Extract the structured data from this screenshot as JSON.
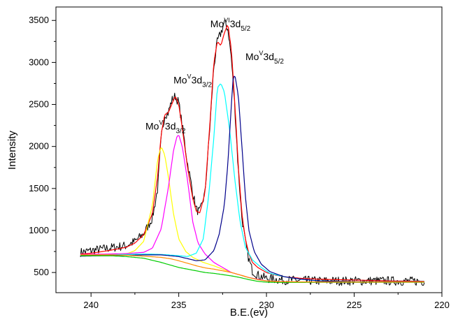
{
  "chart_data": {
    "type": "line",
    "title": "",
    "xlabel": "B.E.(ev)",
    "ylabel": "Intensity",
    "xlim": [
      242,
      220
    ],
    "ylim": [
      260,
      3660
    ],
    "xticks": [
      240,
      235,
      230,
      225,
      220
    ],
    "yticks": [
      500,
      1000,
      1500,
      2000,
      2500,
      3000,
      3500
    ],
    "x_reversed": true,
    "grid": false,
    "legend": "none",
    "series": [
      {
        "color": "#000000",
        "style": "noisy",
        "x": [
          240.6,
          240,
          239,
          238,
          237.5,
          237,
          236.5,
          236.2,
          236,
          235.8,
          235.6,
          235.4,
          235.2,
          235,
          234.8,
          234.5,
          234.2,
          234,
          233.8,
          233.5,
          233.2,
          233,
          232.8,
          232.6,
          232.4,
          232.2,
          232,
          231.8,
          231.6,
          231.4,
          231.2,
          231,
          230.8,
          230.5,
          230,
          229.5,
          229,
          228,
          227,
          225,
          223,
          221
        ],
        "y": [
          740,
          760,
          790,
          820,
          870,
          960,
          1150,
          1500,
          2100,
          2380,
          2400,
          2550,
          2600,
          2520,
          2250,
          1800,
          1450,
          1250,
          1220,
          1450,
          2300,
          2950,
          3250,
          3350,
          3480,
          3400,
          3050,
          2450,
          1700,
          1150,
          850,
          650,
          520,
          470,
          430,
          420,
          410,
          405,
          400,
          400,
          400,
          395
        ]
      },
      {
        "color": "#ff0000",
        "style": "smooth",
        "x": [
          240.6,
          240,
          239,
          238,
          237.5,
          237,
          236.5,
          236.2,
          236,
          235.8,
          235.6,
          235.4,
          235.2,
          235,
          234.8,
          234.5,
          234.2,
          234,
          233.8,
          233.5,
          233.2,
          233,
          232.8,
          232.6,
          232.4,
          232.2,
          232,
          231.8,
          231.6,
          231.4,
          231.2,
          231,
          230.8,
          230.5,
          230,
          229.5,
          229,
          228,
          227,
          225,
          223,
          221
        ],
        "y": [
          720,
          730,
          760,
          800,
          850,
          950,
          1200,
          1650,
          2150,
          2380,
          2400,
          2500,
          2600,
          2500,
          2220,
          1750,
          1380,
          1230,
          1210,
          1450,
          2350,
          3000,
          3250,
          3200,
          3350,
          3460,
          3150,
          2500,
          1750,
          1200,
          900,
          720,
          620,
          560,
          500,
          470,
          450,
          430,
          420,
          410,
          400,
          395
        ]
      },
      {
        "color": "#ffff00",
        "style": "smooth",
        "x": [
          240.6,
          239,
          238,
          237.5,
          237,
          236.5,
          236.2,
          236,
          235.8,
          235.6,
          235.3,
          235,
          234.6,
          234.2,
          233.6,
          233,
          232,
          231,
          230,
          229,
          227,
          225,
          221
        ],
        "y": [
          710,
          710,
          720,
          760,
          870,
          1300,
          1850,
          2000,
          1900,
          1650,
          1200,
          900,
          750,
          680,
          620,
          580,
          500,
          440,
          400,
          390,
          385,
          385,
          385
        ]
      },
      {
        "color": "#ff00ff",
        "style": "smooth",
        "x": [
          240.6,
          239,
          238,
          237,
          236.5,
          236,
          235.6,
          235.3,
          235.1,
          235,
          234.8,
          234.5,
          234.2,
          233.9,
          233.5,
          233,
          232.5,
          232,
          231,
          230,
          229,
          227,
          225,
          221
        ],
        "y": [
          715,
          720,
          725,
          740,
          790,
          1020,
          1500,
          1950,
          2120,
          2140,
          2000,
          1600,
          1100,
          850,
          720,
          620,
          560,
          500,
          440,
          400,
          390,
          385,
          385,
          385
        ]
      },
      {
        "color": "#00ffff",
        "style": "smooth",
        "x": [
          240.6,
          239,
          238,
          237,
          236,
          235,
          234.5,
          234,
          233.6,
          233.3,
          233,
          232.8,
          232.6,
          232.4,
          232.1,
          231.8,
          231.5,
          231.2,
          230.8,
          230.3,
          229.8,
          229,
          228,
          227,
          225,
          221
        ],
        "y": [
          700,
          710,
          715,
          720,
          715,
          700,
          690,
          730,
          900,
          1400,
          2100,
          2700,
          2750,
          2650,
          2200,
          1600,
          1100,
          800,
          650,
          560,
          490,
          450,
          420,
          400,
          390,
          390
        ]
      },
      {
        "color": "#00008b",
        "style": "smooth",
        "x": [
          240.6,
          239,
          238,
          237,
          236,
          235,
          234,
          233.5,
          233,
          232.7,
          232.4,
          232.2,
          232,
          231.9,
          231.8,
          231.6,
          231.4,
          231.2,
          231,
          230.7,
          230.3,
          229.8,
          229,
          228,
          227,
          225,
          221
        ],
        "y": [
          695,
          700,
          705,
          710,
          710,
          690,
          640,
          650,
          760,
          950,
          1300,
          1800,
          2500,
          2820,
          2850,
          2600,
          2000,
          1400,
          1000,
          750,
          600,
          510,
          450,
          420,
          400,
          390,
          390
        ]
      },
      {
        "color": "#00cc00",
        "style": "smooth",
        "x": [
          240.6,
          239,
          238,
          237,
          236,
          235.5,
          235,
          234.5,
          234,
          233.5,
          233,
          232.5,
          232,
          231.5,
          231,
          230.5,
          230,
          229.5,
          229,
          228,
          227,
          225,
          221
        ],
        "y": [
          700,
          700,
          690,
          670,
          620,
          590,
          560,
          540,
          520,
          500,
          490,
          475,
          460,
          440,
          415,
          395,
          385,
          383,
          382,
          382,
          385,
          385,
          385
        ]
      },
      {
        "color": "#ff8c00",
        "style": "smooth",
        "x": [
          240.6,
          239,
          238,
          237,
          236,
          235.5,
          235,
          234.5,
          234,
          233.5,
          233,
          232.5,
          232,
          231.5,
          231,
          230.5,
          230,
          229.5,
          229,
          228,
          227,
          225,
          221
        ],
        "y": [
          710,
          710,
          705,
          695,
          680,
          665,
          640,
          610,
          580,
          555,
          540,
          520,
          500,
          470,
          440,
          415,
          400,
          393,
          390,
          388,
          388,
          388,
          388
        ]
      }
    ],
    "annotations": [
      {
        "pre": "Mo",
        "sup": "VI",
        "mid": "3d",
        "sub": "3/2",
        "x": 236.9,
        "y": 2200
      },
      {
        "pre": "Mo",
        "sup": "V",
        "mid": "3d",
        "sub": "3/2",
        "x": 235.3,
        "y": 2750
      },
      {
        "pre": "Mo",
        "sup": "VI",
        "mid": "3d",
        "sub": "5/2",
        "x": 233.2,
        "y": 3420
      },
      {
        "pre": "Mo",
        "sup": "V",
        "mid": "3d",
        "sub": "5/2",
        "x": 231.2,
        "y": 3030
      }
    ]
  }
}
